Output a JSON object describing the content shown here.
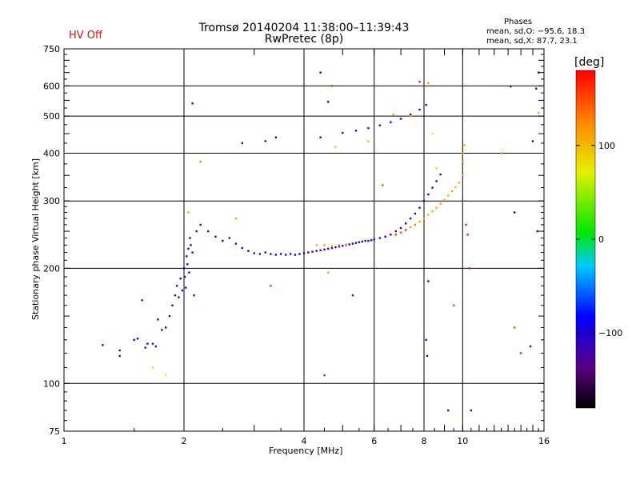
{
  "header": {
    "title_line1": "Tromsø 20140204 11:38:00–11:39:43",
    "title_line2": "RwPretec (8p)",
    "status": "HV Off",
    "stats_title": "Phases",
    "stats_line1": "mean, sd,O: −95.6, 18.3",
    "stats_line2": "mean, sd,X:  87.7, 23.1"
  },
  "colorbar": {
    "unit": "[deg]",
    "ticks": [
      "100",
      "0",
      "−100"
    ],
    "tick_values": [
      100,
      0,
      -100
    ],
    "range": [
      -180,
      180
    ]
  },
  "chart_data": {
    "type": "scatter",
    "title": "Tromsø 20140204 11:38:00–11:39:43",
    "subtitle": "RwPretec (8p)",
    "xlabel": "Frequency [MHz]",
    "ylabel": "Stationary phase Virtual Height [km]",
    "xscale": "log",
    "yscale": "log",
    "xlim": [
      1,
      16
    ],
    "ylim": [
      75,
      750
    ],
    "xticks": [
      "1",
      "2",
      "4",
      "6",
      "8",
      "10",
      "16"
    ],
    "xtick_values": [
      1,
      2,
      4,
      6,
      8,
      10,
      16
    ],
    "yticks": [
      "75",
      "100",
      "200",
      "300",
      "400",
      "500",
      "600",
      "750"
    ],
    "ytick_values": [
      75,
      100,
      200,
      300,
      400,
      500,
      600,
      750
    ],
    "grid": true,
    "color_key": "phase_deg",
    "series": [
      {
        "values": [
          [
            1.25,
            126,
            -110
          ],
          [
            1.38,
            118,
            -120
          ],
          [
            1.38,
            122,
            -115
          ],
          [
            1.5,
            130,
            -105
          ],
          [
            1.53,
            131,
            -110
          ],
          [
            1.57,
            165,
            -105
          ],
          [
            1.6,
            124,
            -120
          ],
          [
            1.62,
            127,
            -112
          ],
          [
            1.67,
            127,
            -118
          ],
          [
            1.7,
            125,
            -110
          ],
          [
            1.72,
            147,
            -108
          ],
          [
            1.76,
            138,
            -112
          ],
          [
            1.8,
            140,
            -106
          ],
          [
            1.84,
            150,
            -110
          ],
          [
            1.87,
            160,
            -115
          ],
          [
            1.9,
            170,
            -110
          ],
          [
            1.92,
            180,
            -105
          ],
          [
            1.94,
            168,
            -120
          ],
          [
            1.96,
            188,
            -108
          ],
          [
            1.98,
            175,
            -112
          ],
          [
            2.0,
            200,
            -110
          ],
          [
            2.01,
            190,
            -100
          ],
          [
            2.02,
            178,
            -118
          ],
          [
            2.03,
            215,
            -105
          ],
          [
            2.04,
            205,
            -112
          ],
          [
            2.05,
            225,
            -108
          ],
          [
            2.06,
            195,
            -115
          ],
          [
            2.07,
            240,
            -100
          ],
          [
            2.08,
            230,
            -110
          ],
          [
            2.1,
            220,
            -105
          ],
          [
            2.12,
            170,
            -115
          ],
          [
            2.15,
            250,
            -110
          ],
          [
            2.2,
            260,
            -108
          ],
          [
            2.3,
            250,
            -112
          ],
          [
            2.4,
            242,
            -110
          ],
          [
            2.5,
            236,
            -105
          ],
          [
            2.6,
            240,
            -112
          ],
          [
            2.7,
            232,
            -110
          ],
          [
            2.8,
            226,
            -108
          ],
          [
            2.9,
            222,
            -112
          ],
          [
            3.0,
            219,
            -110
          ],
          [
            3.1,
            218,
            -106
          ],
          [
            3.2,
            220,
            -112
          ],
          [
            3.3,
            218,
            -110
          ],
          [
            3.4,
            217,
            -108
          ],
          [
            3.5,
            218,
            -112
          ],
          [
            3.6,
            217,
            -110
          ],
          [
            3.7,
            218,
            -108
          ],
          [
            3.8,
            217,
            -112
          ],
          [
            3.9,
            218,
            -110
          ],
          [
            4.0,
            219,
            -108
          ],
          [
            4.1,
            220,
            -112
          ],
          [
            4.2,
            221,
            -110
          ],
          [
            4.3,
            222,
            -108
          ],
          [
            4.4,
            223,
            -112
          ],
          [
            4.5,
            224,
            -110
          ],
          [
            4.6,
            225,
            -108
          ],
          [
            4.7,
            226,
            -112
          ],
          [
            4.8,
            227,
            -110
          ],
          [
            4.9,
            228,
            -108
          ],
          [
            5.0,
            229,
            -112
          ],
          [
            5.1,
            230,
            -110
          ],
          [
            5.2,
            231,
            -108
          ],
          [
            5.3,
            232,
            -112
          ],
          [
            5.4,
            233,
            -110
          ],
          [
            5.5,
            234,
            -108
          ],
          [
            5.6,
            235,
            -112
          ],
          [
            5.7,
            236,
            -110
          ],
          [
            5.8,
            236,
            -108
          ],
          [
            5.9,
            237,
            -112
          ],
          [
            6.0,
            238,
            -110
          ],
          [
            6.2,
            240,
            -108
          ],
          [
            6.4,
            242,
            -112
          ],
          [
            6.6,
            245,
            -110
          ],
          [
            6.8,
            250,
            -108
          ],
          [
            7.0,
            255,
            -112
          ],
          [
            7.2,
            262,
            -110
          ],
          [
            7.4,
            270,
            -108
          ],
          [
            7.6,
            278,
            -112
          ],
          [
            7.8,
            288,
            -110
          ],
          [
            8.0,
            300,
            -108
          ],
          [
            8.2,
            312,
            -112
          ],
          [
            8.4,
            325,
            -110
          ],
          [
            8.6,
            338,
            -108
          ],
          [
            8.8,
            352,
            -112
          ],
          [
            4.3,
            230,
            110
          ],
          [
            4.5,
            230,
            115
          ],
          [
            4.7,
            229,
            105
          ],
          [
            4.9,
            230,
            112
          ],
          [
            5.1,
            231,
            108
          ],
          [
            6.8,
            245,
            160
          ],
          [
            7.0,
            248,
            150
          ],
          [
            7.2,
            252,
            165
          ],
          [
            7.4,
            256,
            120
          ],
          [
            7.6,
            260,
            130
          ],
          [
            7.8,
            265,
            110
          ],
          [
            8.0,
            270,
            105
          ],
          [
            8.2,
            276,
            108
          ],
          [
            8.4,
            282,
            112
          ],
          [
            8.6,
            288,
            110
          ],
          [
            8.8,
            295,
            115
          ],
          [
            9.0,
            302,
            108
          ],
          [
            9.2,
            310,
            112
          ],
          [
            9.4,
            318,
            110
          ],
          [
            9.6,
            326,
            108
          ],
          [
            9.8,
            335,
            112
          ],
          [
            10.0,
            350,
            115
          ],
          [
            10.0,
            380,
            110
          ],
          [
            10.0,
            400,
            120
          ],
          [
            10.1,
            420,
            105
          ],
          [
            4.4,
            440,
            -110
          ],
          [
            5.0,
            452,
            -108
          ],
          [
            5.4,
            458,
            -112
          ],
          [
            5.8,
            465,
            -110
          ],
          [
            6.2,
            473,
            -108
          ],
          [
            6.6,
            482,
            -112
          ],
          [
            7.0,
            492,
            -110
          ],
          [
            7.4,
            505,
            -108
          ],
          [
            7.8,
            520,
            -112
          ],
          [
            8.1,
            535,
            -110
          ],
          [
            2.1,
            540,
            -115
          ],
          [
            2.8,
            425,
            -110
          ],
          [
            3.2,
            430,
            -105
          ],
          [
            3.4,
            440,
            -112
          ],
          [
            4.4,
            650,
            -108
          ],
          [
            4.6,
            545,
            -112
          ],
          [
            15.5,
            650,
            -110
          ],
          [
            15.3,
            590,
            -115
          ],
          [
            15.0,
            430,
            -108
          ],
          [
            15.4,
            250,
            -105
          ],
          [
            13.2,
            598,
            -110
          ],
          [
            13.5,
            280,
            -112
          ],
          [
            9.2,
            85,
            -115
          ],
          [
            10.5,
            85,
            -110
          ],
          [
            14.8,
            125,
            -108
          ],
          [
            8.1,
            130,
            -112
          ],
          [
            8.15,
            118,
            -110
          ],
          [
            8.2,
            185,
            -108
          ],
          [
            5.3,
            170,
            -112
          ],
          [
            4.5,
            105,
            -60
          ],
          [
            1.67,
            110,
            60
          ],
          [
            1.8,
            105,
            70
          ],
          [
            2.05,
            280,
            110
          ],
          [
            2.2,
            380,
            125
          ],
          [
            2.7,
            270,
            120
          ],
          [
            3.3,
            180,
            160
          ],
          [
            4.6,
            195,
            110
          ],
          [
            6.3,
            330,
            150
          ],
          [
            8.2,
            610,
            110
          ],
          [
            9.5,
            160,
            150
          ],
          [
            10.2,
            260,
            165
          ],
          [
            10.3,
            245,
            170
          ],
          [
            13.5,
            140,
            155
          ],
          [
            14.0,
            120,
            165
          ],
          [
            4.7,
            600,
            160
          ],
          [
            7.8,
            615,
            170
          ],
          [
            10.4,
            200,
            175
          ],
          [
            4.8,
            415,
            90
          ],
          [
            5.8,
            430,
            100
          ],
          [
            8.6,
            365,
            60
          ],
          [
            8.4,
            450,
            70
          ],
          [
            7.4,
            500,
            110
          ],
          [
            6.7,
            505,
            105
          ],
          [
            12.5,
            400,
            120
          ],
          [
            15.5,
            510,
            108
          ]
        ]
      }
    ]
  }
}
